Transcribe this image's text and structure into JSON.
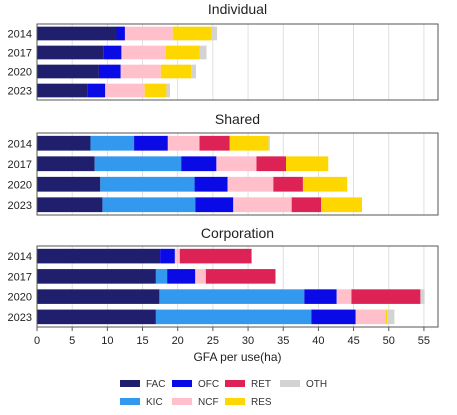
{
  "chart_data": {
    "type": "bar",
    "orientation": "horizontal",
    "stacked": true,
    "xlabel": "GFA per use(ha)",
    "xlim": [
      0,
      57
    ],
    "xticks": [
      0,
      5,
      10,
      15,
      20,
      25,
      30,
      35,
      40,
      45,
      50,
      55
    ],
    "grid": true,
    "legend_position": "bottom",
    "segments": [
      {
        "name": "FAC",
        "color": "#1f1f6e"
      },
      {
        "name": "KIC",
        "color": "#3399ee"
      },
      {
        "name": "OFC",
        "color": "#0a0ae6"
      },
      {
        "name": "NCF",
        "color": "#ffc0cc"
      },
      {
        "name": "RET",
        "color": "#dd2255"
      },
      {
        "name": "RES",
        "color": "#ffd700"
      },
      {
        "name": "OTH",
        "color": "#d3d3d3"
      }
    ],
    "legend_order": [
      "FAC",
      "OFC",
      "RET",
      "OTH",
      "KIC",
      "NCF",
      "RES"
    ],
    "panels": [
      {
        "title": "Individual",
        "categories": [
          "2014",
          "2017",
          "2020",
          "2023"
        ],
        "values": {
          "FAC": [
            11.3,
            9.5,
            8.8,
            7.2
          ],
          "KIC": [
            0,
            0,
            0,
            0
          ],
          "OFC": [
            1.2,
            2.5,
            3.1,
            2.5
          ],
          "NCF": [
            6.8,
            6.3,
            5.7,
            5.6
          ],
          "RET": [
            0,
            0,
            0,
            0
          ],
          "RES": [
            5.5,
            4.8,
            4.3,
            3.1
          ],
          "OTH": [
            0.8,
            1.0,
            0.7,
            0.5
          ]
        }
      },
      {
        "title": "Shared",
        "categories": [
          "2014",
          "2017",
          "2020",
          "2023"
        ],
        "values": {
          "FAC": [
            7.6,
            8.2,
            9.0,
            9.3
          ],
          "KIC": [
            6.2,
            12.3,
            13.4,
            13.2
          ],
          "OFC": [
            4.8,
            5.0,
            4.7,
            5.4
          ],
          "NCF": [
            4.5,
            5.7,
            6.5,
            8.3
          ],
          "RET": [
            4.3,
            4.2,
            4.2,
            4.2
          ],
          "RES": [
            5.5,
            6.0,
            6.3,
            5.8
          ],
          "OTH": [
            0.2,
            0,
            0,
            0
          ]
        }
      },
      {
        "title": "Corporation",
        "categories": [
          "2014",
          "2017",
          "2020",
          "2023"
        ],
        "values": {
          "FAC": [
            17.5,
            16.9,
            17.4,
            16.9
          ],
          "KIC": [
            0,
            1.6,
            20.6,
            22.1
          ],
          "OFC": [
            2.1,
            4.0,
            4.6,
            6.3
          ],
          "NCF": [
            0.7,
            1.5,
            2.1,
            4.2
          ],
          "RET": [
            10.2,
            9.9,
            9.8,
            0
          ],
          "RES": [
            0,
            0,
            0,
            0.3
          ],
          "OTH": [
            0,
            0,
            0.6,
            1.0
          ]
        }
      }
    ]
  }
}
